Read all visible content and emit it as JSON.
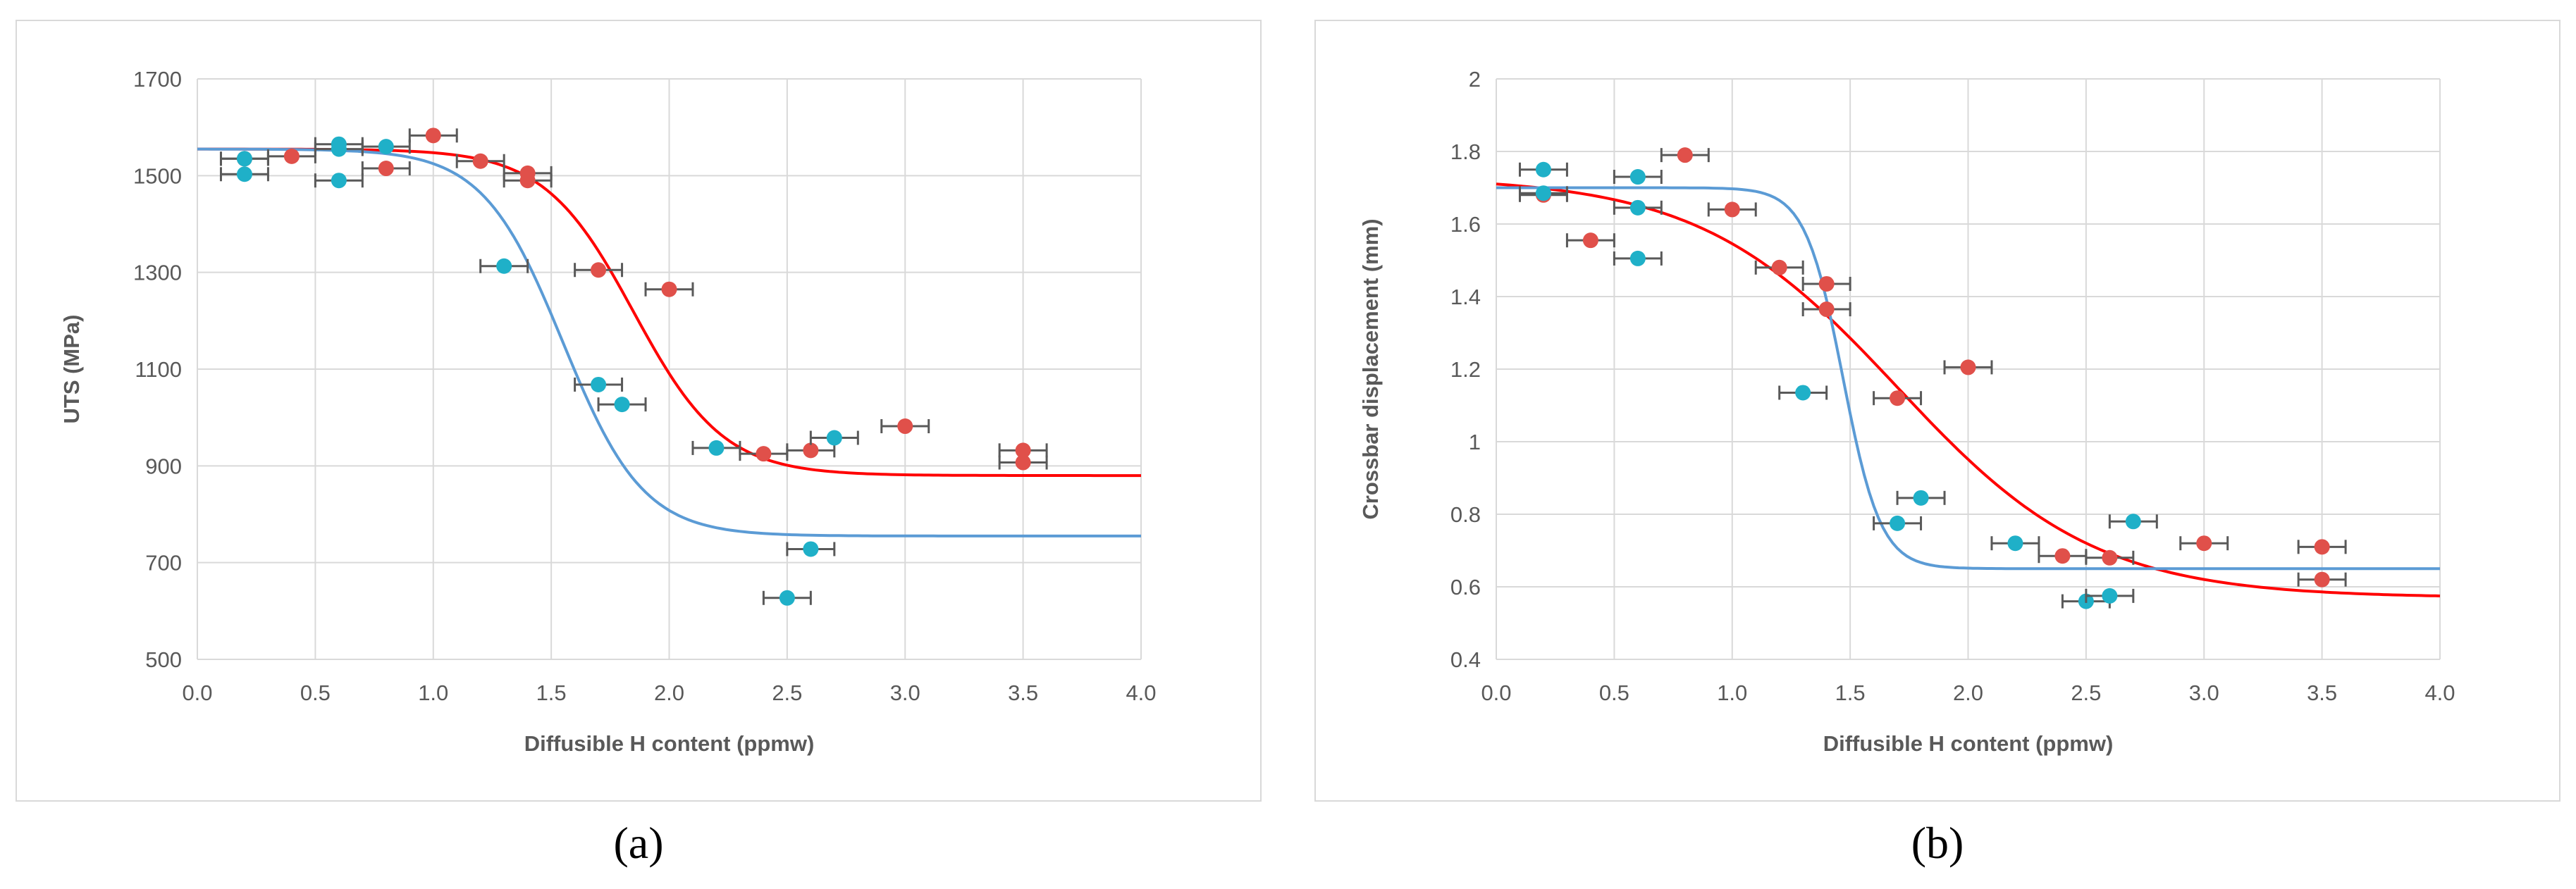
{
  "colors": {
    "series_red": "#e0504a",
    "series_blue": "#1fb0c8",
    "fit_red": "#ff0000",
    "fit_blue": "#5b9bd5",
    "errorbar": "#595959",
    "grid": "#d9d9d9"
  },
  "captions": {
    "a": "(a)",
    "b": "(b)"
  },
  "chart_data": [
    {
      "type": "scatter",
      "panel": "a",
      "title": "",
      "xlabel": "Diffusible H content (ppmw)",
      "ylabel": "UTS (MPa)",
      "xlim": [
        0.0,
        4.0
      ],
      "ylim": [
        500,
        1700
      ],
      "xticks": [
        0.0,
        0.5,
        1.0,
        1.5,
        2.0,
        2.5,
        3.0,
        3.5,
        4.0
      ],
      "xtick_labels": [
        "0.0",
        "0.5",
        "1.0",
        "1.5",
        "2.0",
        "2.5",
        "3.0",
        "3.5",
        "4.0"
      ],
      "yticks": [
        500,
        700,
        900,
        1100,
        1300,
        1500,
        1700
      ],
      "ytick_labels": [
        "500",
        "700",
        "900",
        "1100",
        "1300",
        "1500",
        "1700"
      ],
      "grid": true,
      "xerr": 0.1,
      "series": [
        {
          "name": "red",
          "color": "#e0504a",
          "x": [
            0.2,
            0.4,
            0.8,
            1.0,
            1.2,
            1.4,
            1.4,
            1.7,
            2.0,
            2.4,
            2.6,
            3.0,
            3.5,
            3.5
          ],
          "y": [
            1535,
            1540,
            1515,
            1583,
            1530,
            1505,
            1490,
            1305,
            1265,
            925,
            932,
            982,
            932,
            907
          ]
        },
        {
          "name": "blue",
          "color": "#1fb0c8",
          "x": [
            0.2,
            0.2,
            0.6,
            0.6,
            0.6,
            0.8,
            1.3,
            1.7,
            1.8,
            2.2,
            2.6,
            2.7,
            2.5
          ],
          "y": [
            1535,
            1503,
            1565,
            1555,
            1490,
            1560,
            1313,
            1068,
            1027,
            937,
            728,
            958,
            627
          ]
        }
      ],
      "fits": [
        {
          "name": "red-fit",
          "color": "#ff0000",
          "lower": 880,
          "upper": 1555,
          "x0": 1.85,
          "k": 0.19
        },
        {
          "name": "blue-fit",
          "color": "#5b9bd5",
          "lower": 755,
          "upper": 1555,
          "x0": 1.55,
          "k": 0.17
        }
      ]
    },
    {
      "type": "scatter",
      "panel": "b",
      "title": "",
      "xlabel": "Diffusible H content (ppmw)",
      "ylabel": "Crossbar displacement (mm)",
      "xlim": [
        0.0,
        4.0
      ],
      "ylim": [
        0.4,
        2.0
      ],
      "xticks": [
        0.0,
        0.5,
        1.0,
        1.5,
        2.0,
        2.5,
        3.0,
        3.5,
        4.0
      ],
      "xtick_labels": [
        "0.0",
        "0.5",
        "1.0",
        "1.5",
        "2.0",
        "2.5",
        "3.0",
        "3.5",
        "4.0"
      ],
      "yticks": [
        0.4,
        0.6,
        0.8,
        1.0,
        1.2,
        1.4,
        1.6,
        1.8,
        2.0
      ],
      "ytick_labels": [
        "0.4",
        "0.6",
        "0.8",
        "1",
        "1.2",
        "1.4",
        "1.6",
        "1.8",
        "2"
      ],
      "grid": true,
      "xerr": 0.1,
      "series": [
        {
          "name": "red",
          "color": "#e0504a",
          "x": [
            0.2,
            0.4,
            0.8,
            1.0,
            1.2,
            1.4,
            1.4,
            1.7,
            2.0,
            2.4,
            2.6,
            3.0,
            3.5,
            3.5
          ],
          "y": [
            1.68,
            1.555,
            1.79,
            1.64,
            1.48,
            1.435,
            1.365,
            1.12,
            1.205,
            0.685,
            0.68,
            0.72,
            0.71,
            0.62
          ]
        },
        {
          "name": "blue",
          "color": "#1fb0c8",
          "x": [
            0.2,
            0.2,
            0.6,
            0.6,
            0.6,
            1.3,
            1.7,
            1.8,
            2.2,
            2.5,
            2.6,
            2.7
          ],
          "y": [
            1.75,
            1.685,
            1.73,
            1.645,
            1.505,
            1.135,
            0.775,
            0.845,
            0.72,
            0.56,
            0.575,
            0.78
          ]
        }
      ],
      "fits": [
        {
          "name": "red-fit",
          "color": "#ff0000",
          "lower": 0.57,
          "upper": 1.73,
          "x0": 1.7,
          "k": 0.42
        },
        {
          "name": "blue-fit",
          "color": "#5b9bd5",
          "lower": 0.65,
          "upper": 1.7,
          "x0": 1.47,
          "k": 0.08
        }
      ]
    }
  ]
}
